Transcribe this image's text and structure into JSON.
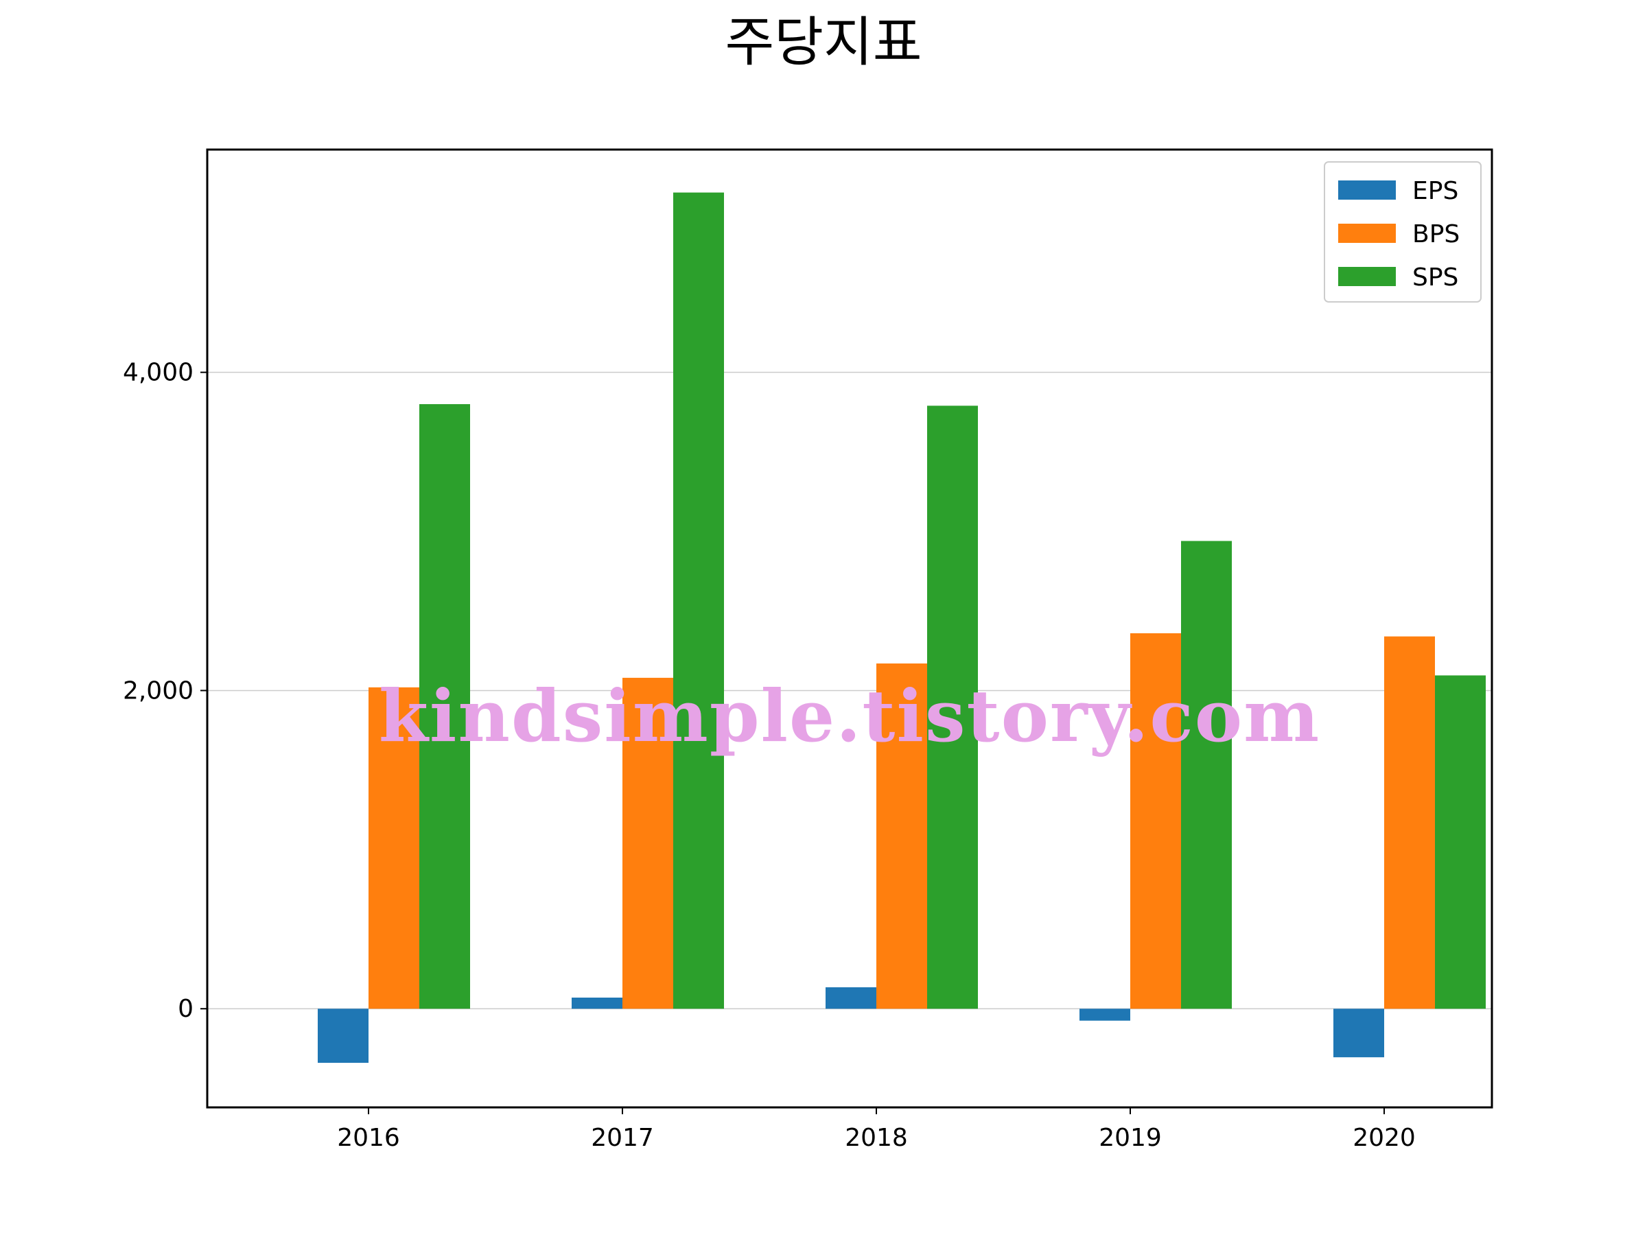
{
  "chart_data": {
    "type": "bar",
    "title": "주당지표",
    "xlabel": "",
    "ylabel": "",
    "categories": [
      "2016",
      "2017",
      "2018",
      "2019",
      "2020"
    ],
    "series": [
      {
        "name": "EPS",
        "color": "#1f77b4",
        "values": [
          -340,
          70,
          135,
          -75,
          -305
        ]
      },
      {
        "name": "BPS",
        "color": "#ff7f0e",
        "values": [
          2020,
          2080,
          2170,
          2360,
          2340
        ]
      },
      {
        "name": "SPS",
        "color": "#2ca02c",
        "values": [
          3800,
          5130,
          3790,
          2940,
          2095
        ]
      }
    ],
    "yticks": [
      0,
      2000,
      4000
    ],
    "ytick_labels": [
      "0",
      "2,000",
      "4,000"
    ],
    "ylim": [
      -620,
      5400
    ],
    "grid": "horizontal",
    "legend_position": "top-right"
  },
  "watermark": "kindsimple.tistory.com"
}
